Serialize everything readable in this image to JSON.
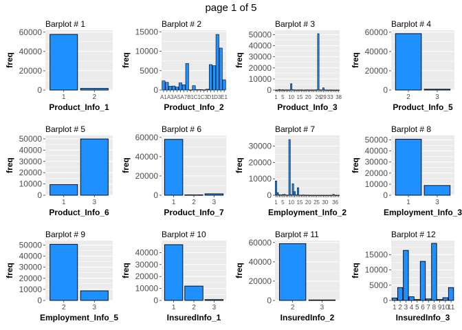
{
  "page": {
    "title": "page 1 of 5"
  },
  "colors": {
    "bar_fill": "#1e90ff",
    "bar_stroke": "#000000",
    "panel_bg": "#ebebeb",
    "grid": "#ffffff",
    "tick_text": "#4d4d4d"
  },
  "chart_data": [
    {
      "type": "bar",
      "title": "Barplot # 1",
      "xlabel": "Product_Info_1",
      "ylabel": "freq",
      "categories": [
        "1",
        "2"
      ],
      "values": [
        57700,
        1680
      ],
      "yticks": [
        0,
        20000,
        40000,
        60000
      ],
      "ylim": [
        0,
        62000
      ],
      "grid": true
    },
    {
      "type": "bar",
      "title": "Barplot # 2",
      "xlabel": "Product_Info_2",
      "ylabel": "freq",
      "categories": [
        "A1",
        "A2",
        "A3",
        "A4",
        "A5",
        "A6",
        "A7",
        "A8",
        "B1",
        "B2",
        "C1",
        "C2",
        "C3",
        "C4",
        "D1",
        "D2",
        "D3",
        "D4",
        "E1"
      ],
      "values": [
        2363,
        1974,
        977,
        1037,
        775,
        1845,
        1347,
        6835,
        54,
        1122,
        96,
        132,
        62,
        219,
        6554,
        6286,
        14321,
        10812,
        2647
      ],
      "visible_tick_labels": [
        "A1",
        "A3",
        "A5",
        "A7",
        "B1",
        "C1",
        "C3",
        "D1",
        "D3",
        "E1"
      ],
      "yticks": [
        0,
        5000,
        10000,
        15000
      ],
      "ylim": [
        0,
        15400
      ],
      "grid": true
    },
    {
      "type": "bar",
      "title": "Barplot # 3",
      "xlabel": "Product_Info_3",
      "ylabel": "freq",
      "categories": [
        "1",
        "2",
        "3",
        "4",
        "5",
        "6",
        "7",
        "8",
        "9",
        "10",
        "11",
        "12",
        "13",
        "14",
        "15",
        "16",
        "17",
        "18",
        "19",
        "20",
        "21",
        "22",
        "23",
        "24",
        "25",
        "26",
        "27",
        "28",
        "29",
        "30",
        "31",
        "32",
        "33",
        "34",
        "35",
        "36",
        "37",
        "38"
      ],
      "values": [
        50,
        20,
        500,
        100,
        300,
        50,
        200,
        150,
        150,
        5710,
        300,
        150,
        100,
        150,
        100,
        200,
        50,
        100,
        200,
        150,
        100,
        150,
        100,
        150,
        200,
        50880,
        200,
        150,
        2000,
        150,
        100,
        50,
        150,
        100,
        50,
        20,
        100,
        50
      ],
      "visible_tick_labels": [
        "1",
        "5",
        "10",
        "15",
        "20",
        "26",
        "29",
        "33",
        "38"
      ],
      "yticks": [
        0,
        10000,
        20000,
        30000,
        40000,
        50000
      ],
      "ylim": [
        0,
        54000
      ],
      "grid": true
    },
    {
      "type": "bar",
      "title": "Barplot # 4",
      "xlabel": "Product_Info_5",
      "ylabel": "freq",
      "categories": [
        "2",
        "3"
      ],
      "values": [
        58500,
        880
      ],
      "yticks": [
        0,
        20000,
        40000,
        60000
      ],
      "ylim": [
        0,
        62000
      ],
      "grid": true
    },
    {
      "type": "bar",
      "title": "Barplot # 5",
      "xlabel": "Product_Info_6",
      "ylabel": "freq",
      "categories": [
        "1",
        "3"
      ],
      "values": [
        9500,
        49900
      ],
      "yticks": [
        0,
        10000,
        20000,
        30000,
        40000,
        50000
      ],
      "ylim": [
        0,
        53000
      ],
      "grid": true
    },
    {
      "type": "bar",
      "title": "Barplot # 6",
      "xlabel": "Product_Info_7",
      "ylabel": "freq",
      "categories": [
        "1",
        "2",
        "3"
      ],
      "values": [
        57900,
        400,
        1480
      ],
      "yticks": [
        0,
        20000,
        40000,
        60000
      ],
      "ylim": [
        0,
        62000
      ],
      "grid": true
    },
    {
      "type": "bar",
      "title": "Barplot # 7",
      "xlabel": "Employment_Info_2",
      "ylabel": "freq",
      "categories": [
        "1",
        "2",
        "3",
        "4",
        "5",
        "6",
        "7",
        "8",
        "9",
        "10",
        "11",
        "12",
        "13",
        "14",
        "15",
        "16",
        "17",
        "18",
        "19",
        "20",
        "21",
        "22",
        "23",
        "24",
        "25",
        "26",
        "27",
        "28",
        "29",
        "30",
        "31",
        "32",
        "33",
        "34",
        "35",
        "36",
        "37",
        "38"
      ],
      "values": [
        8700,
        1600,
        300,
        200,
        400,
        500,
        200,
        100,
        34000,
        300,
        7000,
        2200,
        200,
        4600,
        100,
        100,
        200,
        100,
        100,
        100,
        50,
        50,
        50,
        50,
        50,
        50,
        50,
        50,
        50,
        50,
        50,
        50,
        50,
        50,
        500,
        50,
        50,
        50
      ],
      "visible_tick_labels": [
        "1",
        "5",
        "10",
        "15",
        "20",
        "25",
        "30",
        "36"
      ],
      "yticks": [
        0,
        10000,
        20000,
        30000
      ],
      "ylim": [
        0,
        36500
      ],
      "grid": true
    },
    {
      "type": "bar",
      "title": "Barplot # 8",
      "xlabel": "Employment_Info_3",
      "ylabel": "freq",
      "categories": [
        "1",
        "3"
      ],
      "values": [
        50600,
        8800
      ],
      "yticks": [
        0,
        10000,
        20000,
        30000,
        40000,
        50000
      ],
      "ylim": [
        0,
        54000
      ],
      "grid": true
    },
    {
      "type": "bar",
      "title": "Barplot # 9",
      "xlabel": "Employment_Info_5",
      "ylabel": "freq",
      "categories": [
        "2",
        "3"
      ],
      "values": [
        50700,
        8700
      ],
      "yticks": [
        0,
        10000,
        20000,
        30000,
        40000,
        50000
      ],
      "ylim": [
        0,
        54000
      ],
      "grid": true
    },
    {
      "type": "bar",
      "title": "Barplot # 10",
      "xlabel": "InsuredInfo_1",
      "ylabel": "freq",
      "categories": [
        "1",
        "2",
        "3"
      ],
      "values": [
        46600,
        12000,
        700
      ],
      "yticks": [
        0,
        10000,
        20000,
        30000,
        40000
      ],
      "ylim": [
        0,
        50000
      ],
      "grid": true
    },
    {
      "type": "bar",
      "title": "Barplot # 11",
      "xlabel": "InsuredInfo_2",
      "ylabel": "freq",
      "categories": [
        "2",
        "3"
      ],
      "values": [
        58900,
        500
      ],
      "yticks": [
        0,
        20000,
        40000,
        60000
      ],
      "ylim": [
        0,
        62000
      ],
      "grid": true
    },
    {
      "type": "bar",
      "title": "Barplot # 12",
      "xlabel": "InsuredInfo_3",
      "ylabel": "freq",
      "categories": [
        "1",
        "2",
        "3",
        "4",
        "5",
        "6",
        "7",
        "8",
        "9",
        "10",
        "11"
      ],
      "values": [
        800,
        4200,
        16400,
        1200,
        300,
        12800,
        500,
        18700,
        300,
        900,
        4200
      ],
      "yticks": [
        0,
        5000,
        10000,
        15000
      ],
      "ylim": [
        0,
        19600
      ],
      "grid": true
    }
  ]
}
